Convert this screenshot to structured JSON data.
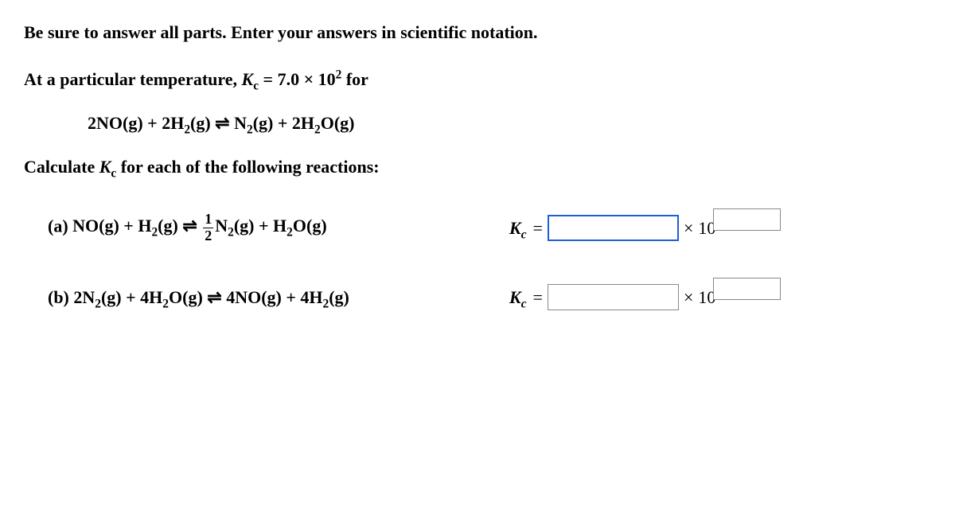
{
  "instructions": "Be sure to answer all parts. Enter your answers in scientific notation.",
  "given_prefix": "At a particular temperature, ",
  "given_kc_symbol": "K",
  "given_kc_sub": "c",
  "given_kc_value": " = 7.0 × 10",
  "given_kc_exp": "2",
  "given_suffix": " for",
  "main_reaction_html": "2NO(g) + 2H<sub>2</sub>(g) &#8652; N<sub>2</sub>(g) + 2H<sub>2</sub>O(g)",
  "calculate_line": "Calculate ",
  "calculate_kc_sym": "K",
  "calculate_kc_sub": "c",
  "calculate_suffix": " for each of the following reactions:",
  "problems": {
    "a": {
      "label": "(a) ",
      "reaction_html": "NO(g) + H<sub>2</sub>(g) &#8652; <span class=\"frac\"><span class=\"num\">1</span><span class=\"den\">2</span></span>N<sub>2</sub>(g) + H<sub>2</sub>O(g)",
      "kc_symbol": "K",
      "kc_sub": "c",
      "equals": "=",
      "times": "×",
      "ten": "10",
      "input_focused": true
    },
    "b": {
      "label": "(b) ",
      "reaction_html": "2N<sub>2</sub>(g) + 4H<sub>2</sub>O(g) &#8652; 4NO(g) + 4H<sub>2</sub>(g)",
      "kc_symbol": "K",
      "kc_sub": "c",
      "equals": "=",
      "times": "×",
      "ten": "10",
      "input_focused": false
    }
  }
}
